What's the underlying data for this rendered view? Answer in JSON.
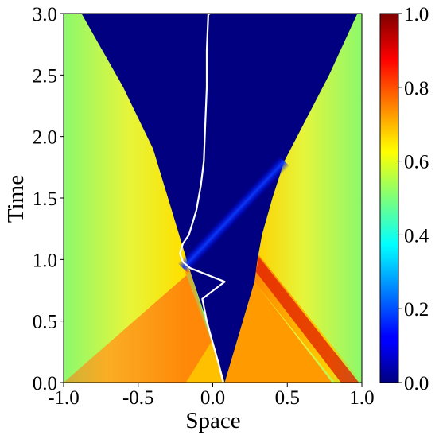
{
  "chart_data": {
    "type": "heatmap",
    "title": "",
    "xlabel": "Space",
    "ylabel": "Time",
    "xlim": [
      -1.0,
      1.0
    ],
    "ylim": [
      0.0,
      3.0
    ],
    "x_ticks": [
      -1.0,
      -0.5,
      0.0,
      0.5,
      1.0
    ],
    "x_tick_labels": [
      "-1.0",
      "-0.5",
      "0.0",
      "0.5",
      "1.0"
    ],
    "y_ticks": [
      0.0,
      0.5,
      1.0,
      1.5,
      2.0,
      2.5,
      3.0
    ],
    "y_tick_labels": [
      "0.0",
      "0.5",
      "1.0",
      "1.5",
      "2.0",
      "2.5",
      "3.0"
    ],
    "colorbar": {
      "colormap": "jet",
      "range": [
        0.0,
        1.0
      ],
      "ticks": [
        0.0,
        0.2,
        0.4,
        0.6,
        0.8,
        1.0
      ],
      "tick_labels": [
        "0.0",
        "0.2",
        "0.4",
        "0.6",
        "0.8",
        "1.0"
      ]
    },
    "regions": {
      "background_value": 0.0,
      "far_field_value": 0.56,
      "left_state_value": 0.76,
      "center_state_value": 0.72,
      "right_state_value": 0.78,
      "right_peak_value": 0.96,
      "left_fan_boundary": [
        [
          -0.88,
          3.0
        ],
        [
          -0.6,
          2.4
        ],
        [
          -0.4,
          1.9
        ],
        [
          -0.3,
          1.5
        ],
        [
          -0.2,
          1.1
        ],
        [
          -0.15,
          0.9
        ]
      ],
      "right_fan_boundary": [
        [
          0.97,
          3.0
        ],
        [
          0.78,
          2.5
        ],
        [
          0.48,
          1.8
        ],
        [
          0.4,
          1.5
        ],
        [
          0.33,
          1.2
        ],
        [
          0.3,
          1.0
        ],
        [
          0.28,
          0.82
        ]
      ],
      "left_wave_front": [
        [
          -1.0,
          0.0
        ],
        [
          -0.15,
          0.9
        ]
      ],
      "right_wave_front": [
        [
          0.8,
          0.0
        ],
        [
          0.28,
          0.82
        ]
      ],
      "low_density_band": [
        [
          -0.2,
          0.93
        ],
        [
          0.48,
          1.8
        ]
      ]
    },
    "series": [
      {
        "name": "",
        "color": "#ffffff",
        "x": [
          0.07,
          0.04,
          0.0,
          -0.04,
          -0.07,
          0.08,
          -0.15,
          -0.2,
          -0.22,
          -0.2,
          -0.16,
          -0.11,
          -0.08,
          -0.06,
          -0.05,
          -0.04,
          -0.04,
          -0.03,
          -0.02
        ],
        "y": [
          0.0,
          0.15,
          0.32,
          0.5,
          0.68,
          0.82,
          0.93,
          0.98,
          1.05,
          1.13,
          1.2,
          1.4,
          1.6,
          1.8,
          2.1,
          2.4,
          2.7,
          2.99,
          3.0
        ]
      }
    ]
  }
}
